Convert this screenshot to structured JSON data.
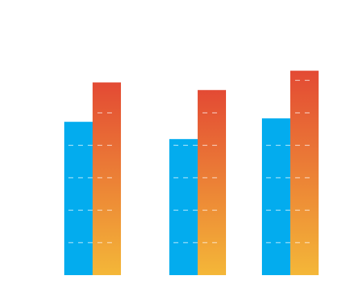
{
  "chart_data": {
    "type": "bar",
    "categories": [
      "",
      "",
      ""
    ],
    "series": [
      {
        "values": [
          222,
          197,
          227
        ]
      },
      {
        "values": [
          279,
          268,
          296
        ]
      }
    ],
    "ylim": [
      0,
      320
    ],
    "grid": true,
    "legend": "none",
    "colors": {
      "series_1": "#03acee",
      "series_2_top": "#e34a34",
      "series_2_bottom": "#f4b738",
      "grid": "#ffffff"
    }
  }
}
